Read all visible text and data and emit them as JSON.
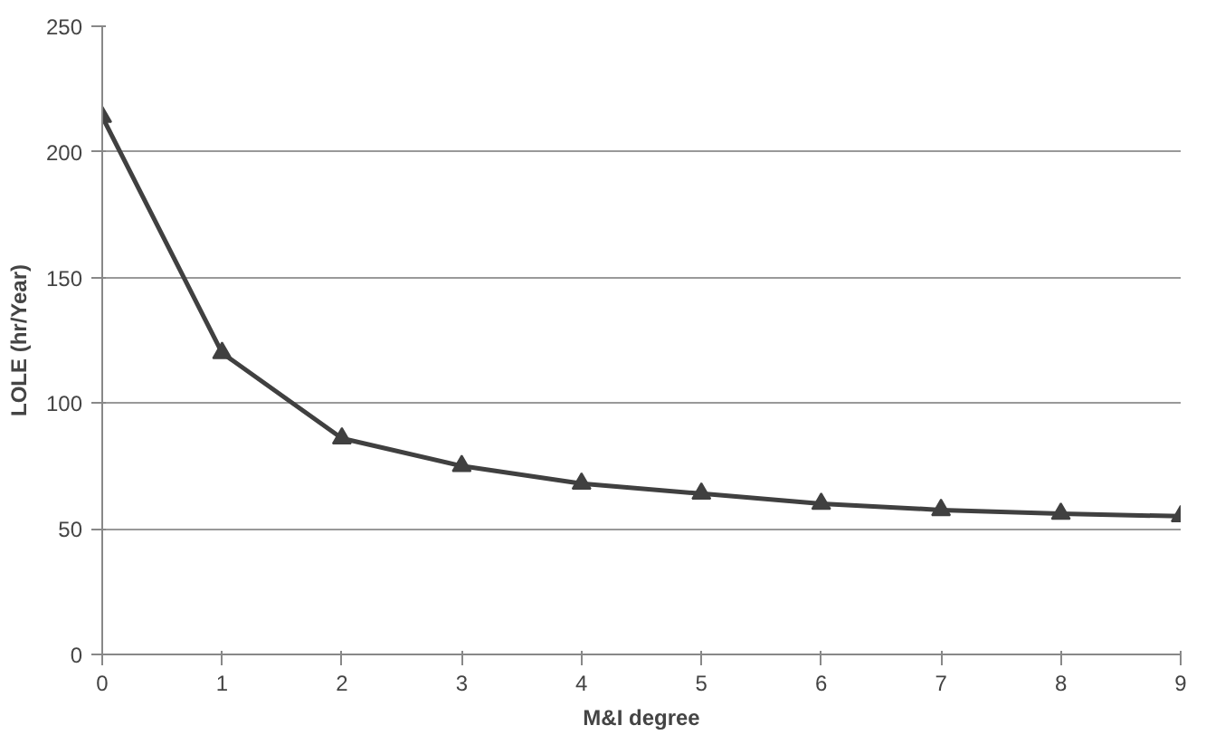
{
  "chart_data": {
    "type": "line",
    "xlabel": "M&I degree",
    "ylabel": "LOLE (hr/Year)",
    "x": [
      0,
      1,
      2,
      3,
      4,
      5,
      6,
      7,
      8,
      9
    ],
    "series": [
      {
        "color": "#404040",
        "values": [
          214,
          120,
          86,
          75,
          68,
          64,
          60,
          57.5,
          56,
          55
        ]
      }
    ],
    "xlim": [
      0,
      9
    ],
    "xticks": [
      0,
      1,
      2,
      3,
      4,
      5,
      6,
      7,
      8,
      9
    ],
    "ylim": [
      0,
      250
    ],
    "yticks": [
      0,
      50,
      100,
      150,
      200,
      250
    ],
    "grid": "y",
    "marker": "triangle",
    "line_style": "solid"
  }
}
